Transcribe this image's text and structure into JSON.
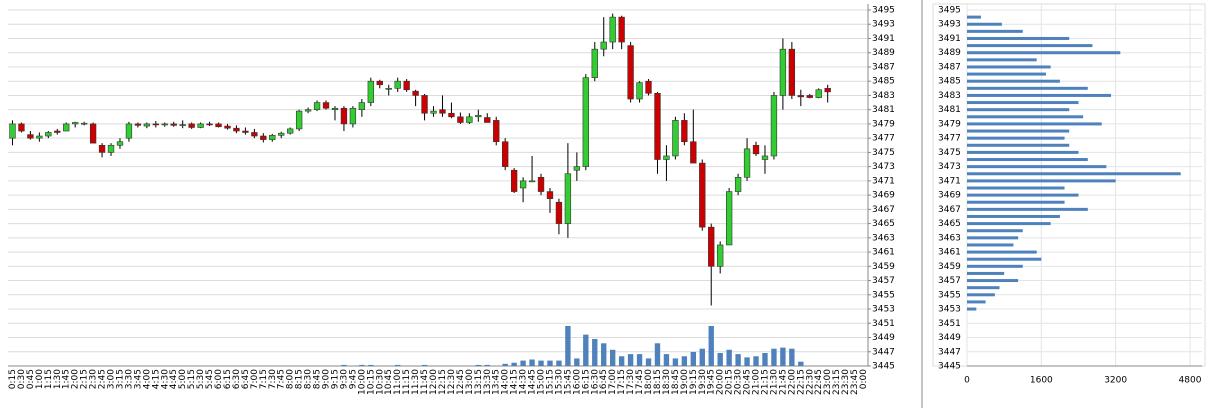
{
  "chart_data": [
    {
      "type": "candlestick",
      "categories": [
        "0:15",
        "0:30",
        "0:45",
        "1:00",
        "1:15",
        "1:30",
        "1:45",
        "2:00",
        "2:15",
        "2:30",
        "2:45",
        "3:00",
        "3:15",
        "3:30",
        "3:45",
        "4:00",
        "4:15",
        "4:30",
        "4:45",
        "5:00",
        "5:15",
        "5:30",
        "5:45",
        "6:00",
        "6:15",
        "6:30",
        "6:45",
        "7:00",
        "7:15",
        "7:30",
        "7:45",
        "8:00",
        "8:15",
        "8:30",
        "8:45",
        "9:00",
        "9:15",
        "9:30",
        "9:45",
        "10:00",
        "10:15",
        "10:30",
        "10:45",
        "11:00",
        "11:15",
        "11:30",
        "11:45",
        "12:00",
        "12:15",
        "12:30",
        "12:45",
        "13:00",
        "13:15",
        "13:30",
        "13:45",
        "14:00",
        "14:15",
        "14:30",
        "14:45",
        "15:00",
        "15:15",
        "15:30",
        "15:45",
        "16:00",
        "16:15",
        "16:30",
        "16:45",
        "17:00",
        "17:15",
        "17:30",
        "17:45",
        "18:00",
        "18:15",
        "18:30",
        "18:45",
        "19:00",
        "19:15",
        "19:30",
        "19:45",
        "20:00",
        "20:15",
        "20:30",
        "20:45",
        "21:00",
        "21:15",
        "21:30",
        "21:45",
        "22:00",
        "22:15",
        "22:30",
        "22:45",
        "23:00",
        "23:15",
        "23:30",
        "23:45",
        "0:00"
      ],
      "open": [
        3477,
        3479,
        3477.5,
        3477,
        3477.3,
        3478,
        3478,
        3479,
        3479,
        3479,
        3476,
        3475,
        3476,
        3477,
        3479,
        3478.7,
        3479,
        3478.9,
        3479,
        3478.8,
        3479,
        3478.5,
        3479,
        3479,
        3478.7,
        3478.4,
        3478,
        3477.8,
        3477.3,
        3476.8,
        3477.4,
        3477.7,
        3478.3,
        3480.8,
        3481,
        3482,
        3481,
        3481.2,
        3479,
        3481,
        3482,
        3485,
        3484,
        3484,
        3485,
        3483.6,
        3483,
        3480.5,
        3481,
        3480.5,
        3480,
        3479.2,
        3480,
        3479.9,
        3479.5,
        3476.5,
        3472.5,
        3470,
        3471,
        3471.5,
        3469.5,
        3468,
        3465,
        3472.5,
        3473,
        3485.5,
        3489.5,
        3490.5,
        3494,
        3490,
        3482.5,
        3485,
        3483.3,
        3474,
        3474.5,
        3479.5,
        3476.5,
        3473.5,
        3464.5,
        3459,
        3462,
        3469.5,
        3471.5,
        3476,
        3474,
        3474.5,
        3483,
        3489.5,
        3483,
        3483,
        3482.7,
        3484,
        null,
        null,
        null,
        null
      ],
      "high": [
        3479.5,
        3479.2,
        3478,
        3477.8,
        3478,
        3478.3,
        3479.2,
        3479.3,
        3479.3,
        3479.2,
        3476.3,
        3476.3,
        3477,
        3479.3,
        3479.2,
        3479.2,
        3479.4,
        3479.2,
        3479.3,
        3479.5,
        3479.2,
        3479.2,
        3479.3,
        3479.2,
        3479,
        3478.8,
        3478.5,
        3478.3,
        3477.7,
        3477.6,
        3477.9,
        3478.5,
        3481,
        3481.3,
        3482.3,
        3482.3,
        3481.5,
        3481.5,
        3481.5,
        3482.5,
        3485.5,
        3485.2,
        3484.5,
        3485.5,
        3485.3,
        3483.8,
        3483.2,
        3481.5,
        3483,
        3482,
        3480.6,
        3480.5,
        3481,
        3480.5,
        3480,
        3477,
        3472.8,
        3471.5,
        3474.5,
        3472,
        3470,
        3468.5,
        3476.3,
        3475,
        3486,
        3490.5,
        3494,
        3494.5,
        3494.2,
        3490.5,
        3485,
        3485.3,
        3483.5,
        3476,
        3480,
        3480.5,
        3481,
        3474,
        3465,
        3462.5,
        3470,
        3472,
        3477,
        3476.5,
        3476,
        3483.5,
        3491,
        3490.5,
        3483.8,
        3483.2,
        3484,
        3484.5,
        null,
        null,
        null,
        null
      ],
      "low": [
        3476,
        3477.8,
        3476.8,
        3476.5,
        3477,
        3477.5,
        3478,
        3478.5,
        3478.8,
        3476.3,
        3474.3,
        3474.5,
        3475.5,
        3476.5,
        3478.5,
        3478.4,
        3478.5,
        3478.6,
        3478.6,
        3478.4,
        3478.3,
        3478.4,
        3478.7,
        3478.5,
        3478.2,
        3477.7,
        3477.5,
        3477,
        3476.4,
        3476.5,
        3477,
        3477.5,
        3478,
        3480.5,
        3480.8,
        3481,
        3479.5,
        3478,
        3478.5,
        3480,
        3481.5,
        3484,
        3483,
        3483.5,
        3483.5,
        3481.5,
        3479.5,
        3480,
        3480,
        3479.8,
        3479,
        3479,
        3479.3,
        3479.2,
        3476,
        3472.5,
        3469.3,
        3468,
        3471,
        3469,
        3466.5,
        3463.5,
        3463,
        3471,
        3472.5,
        3485,
        3488.5,
        3489.5,
        3489.5,
        3482,
        3482,
        3483,
        3472,
        3471,
        3474,
        3476,
        3473.5,
        3464,
        3453.5,
        3458,
        3462,
        3469,
        3471,
        3474.5,
        3472,
        3474,
        3481,
        3482.5,
        3481.5,
        3482.6,
        3482.6,
        3482,
        null,
        null,
        null,
        null
      ],
      "close": [
        3479,
        3478,
        3477,
        3477.3,
        3477.8,
        3477.8,
        3479,
        3479.2,
        3479.1,
        3476.3,
        3475,
        3476,
        3476.5,
        3479,
        3478.8,
        3479,
        3478.9,
        3479,
        3478.8,
        3478.9,
        3478.5,
        3479,
        3478.9,
        3478.6,
        3478.4,
        3478,
        3477.8,
        3477.3,
        3476.8,
        3477.4,
        3477.7,
        3478.3,
        3480.8,
        3481,
        3482,
        3481.2,
        3481.2,
        3479,
        3481.2,
        3482,
        3485,
        3484.5,
        3484,
        3485,
        3483.8,
        3483,
        3480.5,
        3480.8,
        3480.5,
        3480,
        3479.2,
        3480,
        3480.2,
        3479.2,
        3476.5,
        3473,
        3469.5,
        3471,
        3471,
        3469.5,
        3468.5,
        3465,
        3472,
        3473,
        3485.5,
        3489.5,
        3490.5,
        3494,
        3490.5,
        3482.5,
        3484.8,
        3483.3,
        3474,
        3474.5,
        3479.5,
        3476.5,
        3473.5,
        3464.5,
        3459,
        3462,
        3469.5,
        3471.5,
        3475.5,
        3474.8,
        3474.5,
        3483,
        3489.5,
        3483,
        3482.8,
        3482.7,
        3483.8,
        3483.5,
        null,
        null,
        null,
        null
      ],
      "up_color": "#33cc33",
      "down_color": "#cc0000",
      "volume": {
        "color": "#4f81bd",
        "values": [
          0,
          0,
          0,
          0,
          0,
          0,
          0,
          0,
          0,
          0,
          0,
          0,
          0,
          0,
          0,
          0,
          0,
          0,
          0,
          0,
          0,
          0,
          0,
          0,
          0,
          0,
          0,
          0,
          0,
          0,
          0,
          0,
          0,
          0,
          0,
          0,
          0,
          1,
          0,
          1,
          1,
          0,
          0,
          1,
          0,
          0,
          1,
          0,
          0,
          0,
          0,
          0,
          1,
          1,
          0,
          2,
          3,
          5,
          6,
          5,
          5,
          5,
          37,
          7,
          29,
          25,
          21,
          15,
          9,
          11,
          11,
          7,
          21,
          11,
          7,
          9,
          13,
          16,
          37,
          12,
          15,
          11,
          8,
          9,
          12,
          16,
          17,
          16,
          4,
          0,
          0,
          0,
          0,
          0,
          0,
          0
        ]
      },
      "ylim": [
        3445,
        3495
      ],
      "yticks": [
        3445,
        3447,
        3449,
        3451,
        3453,
        3455,
        3457,
        3459,
        3461,
        3463,
        3465,
        3467,
        3469,
        3471,
        3473,
        3475,
        3477,
        3479,
        3481,
        3483,
        3485,
        3487,
        3489,
        3491,
        3493,
        3495
      ],
      "grid": true
    },
    {
      "type": "profile",
      "levels": [
        3494,
        3493,
        3492,
        3491,
        3490,
        3489,
        3488,
        3487,
        3486,
        3485,
        3484,
        3483,
        3482,
        3481,
        3480,
        3479,
        3478,
        3477,
        3476,
        3475,
        3474,
        3473,
        3472,
        3471,
        3470,
        3469,
        3468,
        3467,
        3466,
        3465,
        3464,
        3463,
        3462,
        3461,
        3460,
        3459,
        3458,
        3457,
        3456,
        3455,
        3454,
        3453
      ],
      "values": [
        300,
        750,
        1200,
        2200,
        2700,
        3300,
        1500,
        1800,
        1700,
        2000,
        2600,
        3100,
        2400,
        2200,
        2500,
        2900,
        2200,
        2100,
        2200,
        2400,
        2600,
        3000,
        4600,
        3200,
        2100,
        2400,
        2100,
        2600,
        2000,
        1800,
        1200,
        1100,
        1000,
        1500,
        1600,
        1200,
        800,
        1100,
        700,
        600,
        400,
        200
      ],
      "color": "#4f81bd",
      "xlim": [
        0,
        4800
      ],
      "xticks": [
        0,
        1600,
        3200,
        4800
      ],
      "ylim": [
        3445,
        3495
      ],
      "yticks": [
        3445,
        3447,
        3449,
        3451,
        3453,
        3455,
        3457,
        3459,
        3461,
        3463,
        3465,
        3467,
        3469,
        3471,
        3473,
        3475,
        3477,
        3479,
        3481,
        3483,
        3485,
        3487,
        3489,
        3491,
        3493,
        3495
      ],
      "grid": true
    }
  ]
}
